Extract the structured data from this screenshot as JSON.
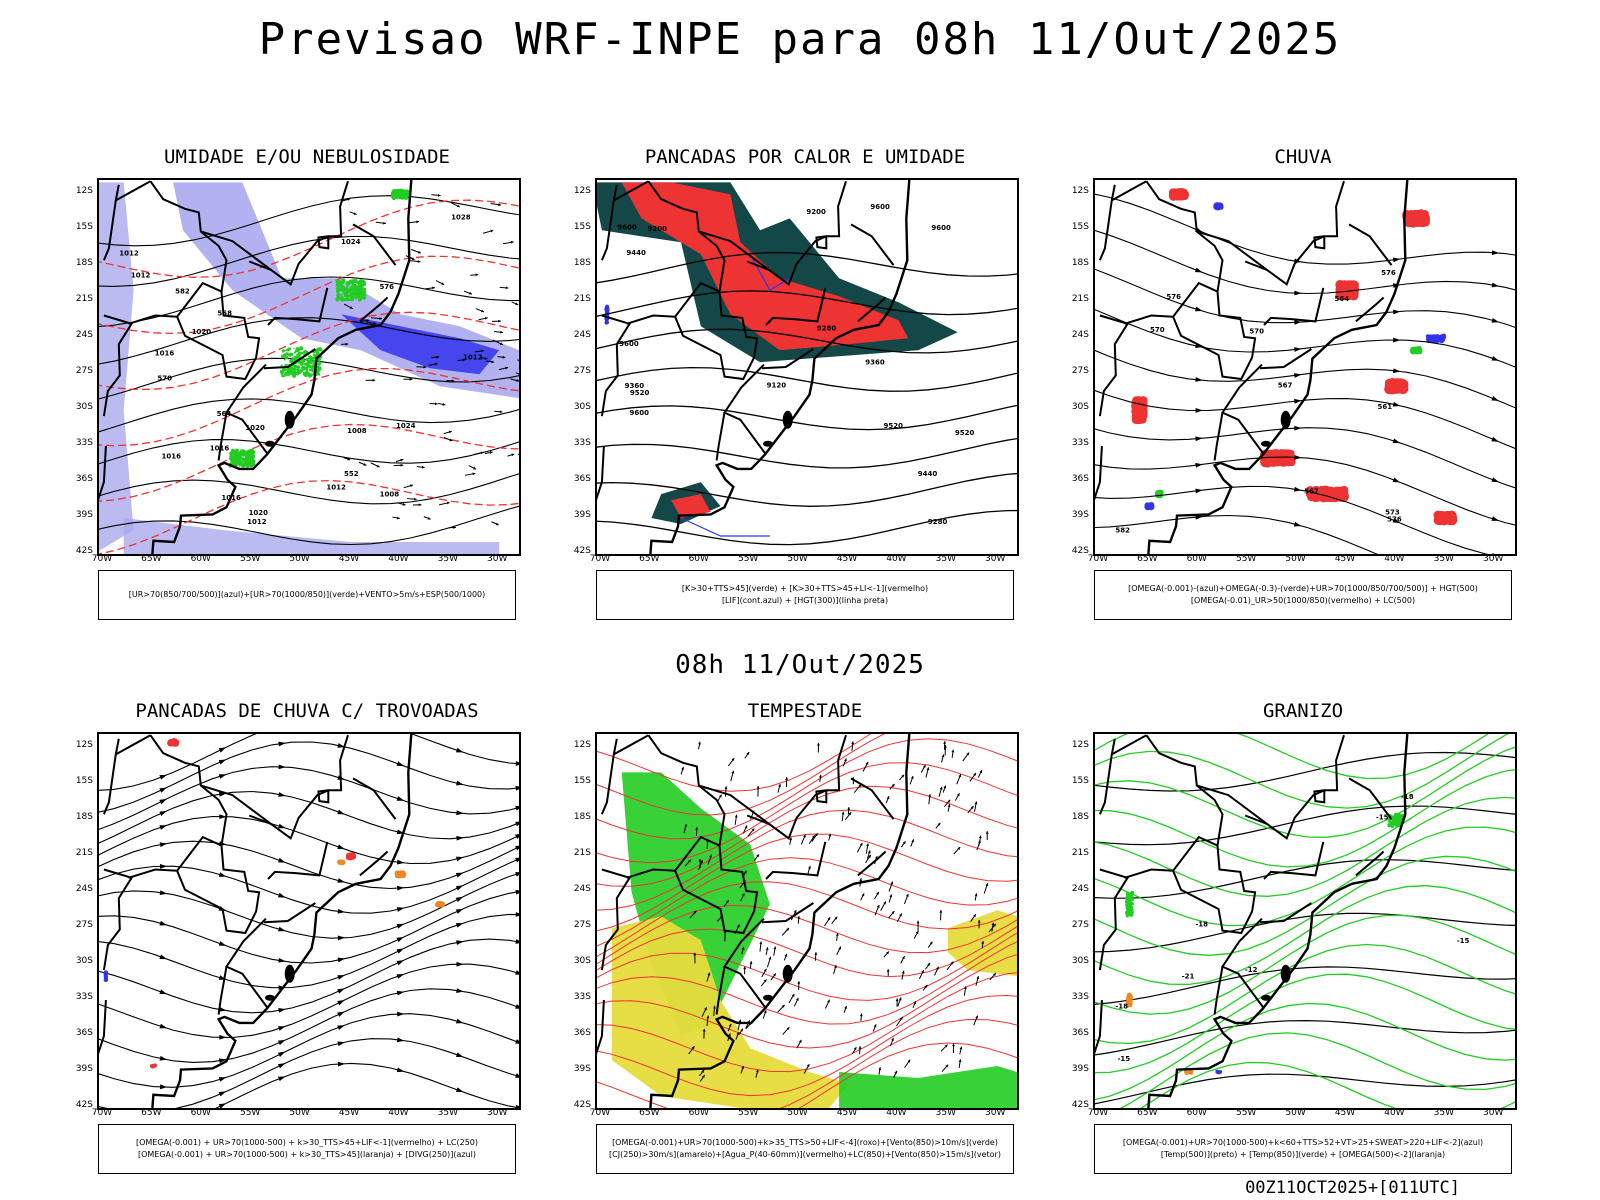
{
  "header": {
    "title": "Previsao WRF-INPE  para 08h 11/Out/2025",
    "subtitle": "08h 11/Out/2025",
    "footer": "00Z11OCT2025+[011UTC]"
  },
  "colors": {
    "blue": "#3333ee",
    "lightblue": "#aaaaee",
    "green": "#22cc22",
    "darkgreen": "#1f8a1f",
    "red": "#ee3333",
    "darkteal": "#144848",
    "orange": "#ee8822",
    "yellow": "#e6dc3c",
    "black": "#000000"
  },
  "axes": {
    "lat_labels": [
      "12S",
      "15S",
      "18S",
      "21S",
      "24S",
      "27S",
      "30S",
      "33S",
      "36S",
      "39S",
      "42S"
    ],
    "lon_labels": [
      "70W",
      "65W",
      "60W",
      "55W",
      "50W",
      "45W",
      "40W",
      "35W",
      "30W"
    ]
  },
  "panels": [
    {
      "id": "umidade",
      "title": "UMIDADE E/OU NEBULOSIDADE",
      "legend_lines": [
        "[UR>70(850/700/500)](azul)+[UR>70(1000/850)](verde)+VENTO>5m/s+ESP(500/1000)"
      ],
      "contour_labels": [
        "1012",
        "1012",
        "1016",
        "1008",
        "1012",
        "1020",
        "1016",
        "1012",
        "1016",
        "1020",
        "1024",
        "1028",
        "1008",
        "1020",
        "1024",
        "1012",
        "1016",
        "552",
        "564",
        "570",
        "576",
        "558",
        "582"
      ]
    },
    {
      "id": "pancadas-calor",
      "title": "PANCADAS POR CALOR E UMIDADE",
      "legend_lines": [
        "[K>30+TTS>45](verde) + [K>30+TTS>45+LI<-1](vermelho)",
        "[LIF](cont.azul) + [HGT(300)](linha preta)"
      ],
      "contour_labels": [
        "9600",
        "9600",
        "9600",
        "9600",
        "9600",
        "9520",
        "9520",
        "9520",
        "9440",
        "9440",
        "9360",
        "9360",
        "9280",
        "9280",
        "9200",
        "9120",
        "9200"
      ]
    },
    {
      "id": "chuva",
      "title": "CHUVA",
      "legend_lines": [
        "[OMEGA(-0.001)-(azul)+OMEGA(-0.3)-(verde)+UR>70(1000/850/700/500)] + HGT(500)",
        "[OMEGA(-0.01)_UR>50(1000/850)(vermelho) + LC(500)"
      ],
      "contour_labels": [
        "582",
        "576",
        "576",
        "570",
        "567",
        "576",
        "573",
        "570",
        "567",
        "561",
        "564"
      ]
    },
    {
      "id": "pancadas-trovoadas",
      "title": "PANCADAS DE CHUVA C/ TROVOADAS",
      "legend_lines": [
        "[OMEGA(-0.001) + UR>70(1000-500) + k>30_TTS>45+LIF<-1](vermelho) + LC(250)",
        "[OMEGA(-0.001) + UR>70(1000-500) + k>30_TTS>45](laranja) + [DIVG(250)](azul)"
      ],
      "contour_labels": []
    },
    {
      "id": "tempestade",
      "title": "TEMPESTADE",
      "legend_lines": [
        "[OMEGA(-0.001)+UR>70(1000-500)+k>35_TTS>50+LIF<-4](roxo)+[Vento(850)>10m/s](verde)",
        "[CJ(250)>30m/s](amarelo)+[Agua_P(40-60mm)](vermelho)+LC(850)+[Vento(850)>15m/s](vetor)"
      ],
      "contour_labels": []
    },
    {
      "id": "granizo",
      "title": "GRANIZO",
      "legend_lines": [
        "[OMEGA(-0.001)+UR>70(1000-500)+k<60+TTS>52+VT>25+SWEAT>220+LIF<-2](azul)",
        "[Temp(500)](preto) + [Temp(850)](verde) + [OMEGA(500)<-2](laranja)"
      ],
      "contour_labels": [
        "-18",
        "-15",
        "-15",
        "-12",
        "-15",
        "-18",
        "-21",
        "-18"
      ]
    }
  ]
}
